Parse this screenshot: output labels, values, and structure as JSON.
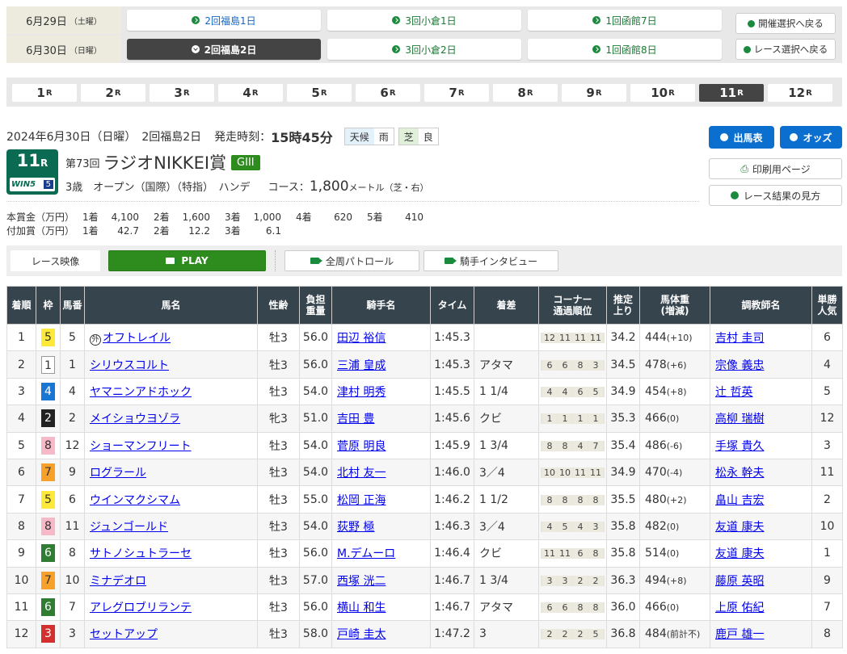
{
  "dates": [
    {
      "label": "6月29日",
      "dow": "（土曜）",
      "meetings": [
        "2回福島1日",
        "3回小倉1日",
        "1回函館7日"
      ],
      "active": -1
    },
    {
      "label": "6月30日",
      "dow": "（日曜）",
      "meetings": [
        "2回福島2日",
        "3回小倉2日",
        "1回函館8日"
      ],
      "active": 0
    }
  ],
  "back_buttons": [
    "開催選択へ戻る",
    "レース選択へ戻る"
  ],
  "races": [
    "1",
    "2",
    "3",
    "4",
    "5",
    "6",
    "7",
    "8",
    "9",
    "10",
    "11",
    "12"
  ],
  "race_suffix": "R",
  "active_race": "11",
  "race_info": {
    "date_line": "2024年6月30日（日曜）　2回福島2日",
    "start_label": "発走時刻：",
    "start_time": "15時45分",
    "weather_label": "天候",
    "weather": "雨",
    "track_label": "芝",
    "track_cond": "良",
    "race_num": "11",
    "race_r": "R",
    "win5": "WIN5",
    "win5_num": "5",
    "edition": "第73回",
    "name": "ラジオNIKKEI賞",
    "grade": "GIII",
    "conditions": "3歳　オープン（国際）（特指）　ハンデ",
    "course_label": "コース：",
    "distance": "1,800",
    "course_unit": "メートル（芝・右）"
  },
  "side_buttons": {
    "entries": "出馬表",
    "odds": "オッズ",
    "print": "印刷用ページ",
    "howto": "レース結果の見方"
  },
  "prize": {
    "main_label": "本賞金（万円）",
    "main": [
      [
        "1着",
        "4,100"
      ],
      [
        "2着",
        "1,600"
      ],
      [
        "3着",
        "1,000"
      ],
      [
        "4着",
        "620"
      ],
      [
        "5着",
        "410"
      ]
    ],
    "add_label": "付加賞（万円）",
    "add": [
      [
        "1着",
        "42.7"
      ],
      [
        "2着",
        "12.2"
      ],
      [
        "3着",
        "6.1"
      ]
    ]
  },
  "video": {
    "label": "レース映像",
    "play": "PLAY",
    "patrol": "全周パトロール",
    "interview": "騎手インタビュー"
  },
  "colors": {
    "waku": {
      "1": "#ffffff",
      "2": "#222222",
      "3": "#d32f2f",
      "4": "#1976d2",
      "5": "#fce93a",
      "6": "#2e7d32",
      "7": "#f7a12a",
      "8": "#f7b8c8"
    },
    "accent_blue": "#0b6fd0",
    "header_dark": "#36444d",
    "grade_green": "#2e8b1e"
  },
  "table": {
    "headers": [
      "着順",
      "枠",
      "馬番",
      "馬名",
      "性齢",
      "負担\n重量",
      "騎手名",
      "タイム",
      "着差",
      "コーナー\n通過順位",
      "推定\n上り",
      "馬体重\n(増減)",
      "調教師名",
      "単勝\n人気"
    ],
    "rows": [
      {
        "pos": "1",
        "waku": "5",
        "num": "5",
        "mark": "外",
        "horse": "オフトレイル",
        "sa": "牡3",
        "wt": "56.0",
        "jockey": "田辺 裕信",
        "time": "1:45.3",
        "margin": "",
        "corner": [
          "12",
          "11",
          "11",
          "11"
        ],
        "last": "34.2",
        "bw": "444",
        "bwd": "(+10)",
        "trainer": "吉村 圭司",
        "pop": "6"
      },
      {
        "pos": "2",
        "waku": "1",
        "num": "1",
        "horse": "シリウスコルト",
        "sa": "牡3",
        "wt": "56.0",
        "jockey": "三浦 皇成",
        "time": "1:45.3",
        "margin": "アタマ",
        "corner": [
          "6",
          "6",
          "8",
          "3"
        ],
        "last": "34.5",
        "bw": "478",
        "bwd": "(+6)",
        "trainer": "宗像 義忠",
        "pop": "4"
      },
      {
        "pos": "3",
        "waku": "4",
        "num": "4",
        "horse": "ヤマニンアドホック",
        "sa": "牡3",
        "wt": "54.0",
        "jockey": "津村 明秀",
        "time": "1:45.5",
        "margin": "1 1/4",
        "corner": [
          "4",
          "4",
          "6",
          "5"
        ],
        "last": "34.9",
        "bw": "454",
        "bwd": "(+8)",
        "trainer": "辻 哲英",
        "pop": "5"
      },
      {
        "pos": "4",
        "waku": "2",
        "num": "2",
        "horse": "メイショウヨゾラ",
        "sa": "牝3",
        "wt": "51.0",
        "jockey": "吉田 豊",
        "time": "1:45.6",
        "margin": "クビ",
        "corner": [
          "1",
          "1",
          "1",
          "1"
        ],
        "last": "35.3",
        "bw": "466",
        "bwd": "(0)",
        "trainer": "高柳 瑞樹",
        "pop": "12"
      },
      {
        "pos": "5",
        "waku": "8",
        "num": "12",
        "horse": "ショーマンフリート",
        "sa": "牡3",
        "wt": "54.0",
        "jockey": "菅原 明良",
        "time": "1:45.9",
        "margin": "1 3/4",
        "corner": [
          "8",
          "8",
          "4",
          "7"
        ],
        "last": "35.4",
        "bw": "486",
        "bwd": "(-6)",
        "trainer": "手塚 貴久",
        "pop": "3"
      },
      {
        "pos": "6",
        "waku": "7",
        "num": "9",
        "horse": "ログラール",
        "sa": "牡3",
        "wt": "54.0",
        "jockey": "北村 友一",
        "time": "1:46.0",
        "margin": "3／4",
        "corner": [
          "10",
          "10",
          "11",
          "11"
        ],
        "last": "34.9",
        "bw": "470",
        "bwd": "(-4)",
        "trainer": "松永 幹夫",
        "pop": "11"
      },
      {
        "pos": "7",
        "waku": "5",
        "num": "6",
        "horse": "ウインマクシマム",
        "sa": "牡3",
        "wt": "55.0",
        "jockey": "松岡 正海",
        "time": "1:46.2",
        "margin": "1 1/2",
        "corner": [
          "8",
          "8",
          "8",
          "8"
        ],
        "last": "35.5",
        "bw": "480",
        "bwd": "(+2)",
        "trainer": "畠山 吉宏",
        "pop": "2"
      },
      {
        "pos": "8",
        "waku": "8",
        "num": "11",
        "horse": "ジュンゴールド",
        "sa": "牡3",
        "wt": "54.0",
        "jockey": "荻野 極",
        "time": "1:46.3",
        "margin": "3／4",
        "corner": [
          "4",
          "5",
          "4",
          "3"
        ],
        "last": "35.8",
        "bw": "482",
        "bwd": "(0)",
        "trainer": "友道 康夫",
        "pop": "10"
      },
      {
        "pos": "9",
        "waku": "6",
        "num": "8",
        "horse": "サトノシュトラーセ",
        "sa": "牡3",
        "wt": "56.0",
        "jockey": "M.デムーロ",
        "time": "1:46.4",
        "margin": "クビ",
        "corner": [
          "11",
          "11",
          "6",
          "8"
        ],
        "last": "35.8",
        "bw": "514",
        "bwd": "(0)",
        "trainer": "友道 康夫",
        "pop": "1"
      },
      {
        "pos": "10",
        "waku": "7",
        "num": "10",
        "horse": "ミナデオロ",
        "sa": "牡3",
        "wt": "57.0",
        "jockey": "西塚 洸二",
        "time": "1:46.7",
        "margin": "1 3/4",
        "corner": [
          "3",
          "3",
          "2",
          "2"
        ],
        "last": "36.3",
        "bw": "494",
        "bwd": "(+8)",
        "trainer": "藤原 英昭",
        "pop": "9"
      },
      {
        "pos": "11",
        "waku": "6",
        "num": "7",
        "horse": "アレグロブリランテ",
        "sa": "牡3",
        "wt": "56.0",
        "jockey": "横山 和生",
        "time": "1:46.7",
        "margin": "アタマ",
        "corner": [
          "6",
          "6",
          "8",
          "8"
        ],
        "last": "36.0",
        "bw": "466",
        "bwd": "(0)",
        "trainer": "上原 佑紀",
        "pop": "7"
      },
      {
        "pos": "12",
        "waku": "3",
        "num": "3",
        "horse": "セットアップ",
        "sa": "牡3",
        "wt": "58.0",
        "jockey": "戸崎 圭太",
        "time": "1:47.2",
        "margin": "3",
        "corner": [
          "2",
          "2",
          "2",
          "5"
        ],
        "last": "36.8",
        "bw": "484",
        "bwd": "(前計不)",
        "trainer": "鹿戸 雄一",
        "pop": "8"
      }
    ]
  }
}
